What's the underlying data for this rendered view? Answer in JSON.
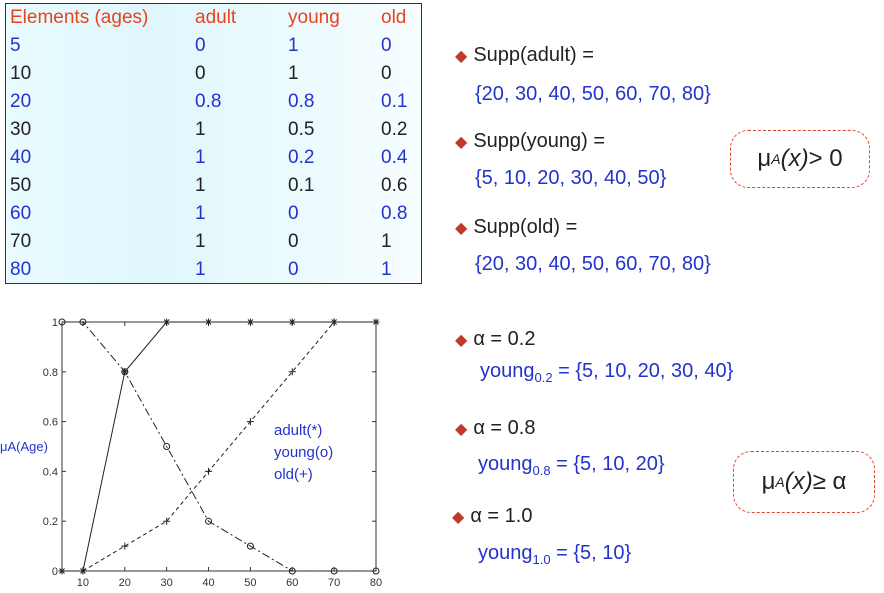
{
  "table": {
    "headers": [
      "Elements (ages)",
      "adult",
      "young",
      "old"
    ],
    "rows": [
      [
        "5",
        "0",
        "1",
        "0"
      ],
      [
        "10",
        "0",
        "1",
        "0"
      ],
      [
        "20",
        "0.8",
        "0.8",
        "0.1"
      ],
      [
        "30",
        "1",
        "0.5",
        "0.2"
      ],
      [
        "40",
        "1",
        "0.2",
        "0.4"
      ],
      [
        "50",
        "1",
        "0.1",
        "0.6"
      ],
      [
        "60",
        "1",
        "0",
        "0.8"
      ],
      [
        "70",
        "1",
        "0",
        "1"
      ],
      [
        "80",
        "1",
        "0",
        "1"
      ]
    ]
  },
  "supports": [
    {
      "label": "Supp(adult) =",
      "set": "{20, 30, 40, 50, 60, 70, 80}"
    },
    {
      "label": "Supp(young) =",
      "set": "{5, 10, 20, 30, 40, 50}"
    },
    {
      "label": "Supp(old) =",
      "set": "{20, 30, 40, 50, 60, 70, 80}"
    }
  ],
  "bubble1": {
    "mu": "μ",
    "sub": "A",
    "x": "(x)",
    "rel": " > 0"
  },
  "bubble2": {
    "mu": "μ",
    "sub": "A",
    "x": "(x)",
    "rel": " ≥ α"
  },
  "alphas": [
    {
      "label": "α = 0.2",
      "name": "young",
      "sub": "0.2",
      "set": " = {5, 10, 20, 30, 40}"
    },
    {
      "label": "α = 0.8",
      "name": "young",
      "sub": "0.8",
      "set": " = {5, 10, 20}"
    },
    {
      "label": "α = 1.0",
      "name": "young",
      "sub": "1.0",
      "set": " = {5, 10}"
    }
  ],
  "chart_data": {
    "type": "line",
    "x": [
      5,
      10,
      20,
      30,
      40,
      50,
      60,
      70,
      80
    ],
    "series": [
      {
        "name": "adult(*)",
        "values": [
          0,
          0,
          0.8,
          1,
          1,
          1,
          1,
          1,
          1
        ],
        "style": "solid",
        "marker": "*"
      },
      {
        "name": "young(o)",
        "values": [
          1,
          1,
          0.8,
          0.5,
          0.2,
          0.1,
          0,
          0,
          0
        ],
        "style": "dashdot",
        "marker": "o"
      },
      {
        "name": "old(+)",
        "values": [
          0,
          0,
          0.1,
          0.2,
          0.4,
          0.6,
          0.8,
          1,
          1
        ],
        "style": "dashed",
        "marker": "+"
      }
    ],
    "ylabel": "μA(Age)",
    "xlim": [
      5,
      80
    ],
    "ylim": [
      0,
      1
    ],
    "xticks": [
      "10",
      "20",
      "30",
      "40",
      "50",
      "60",
      "70",
      "80"
    ],
    "yticks": [
      "0",
      "0.2",
      "0.4",
      "0.6",
      "0.8",
      "1"
    ],
    "legend": [
      "adult(*)",
      "young(o)",
      "old(+)"
    ],
    "legend_color": "#2233cc"
  }
}
